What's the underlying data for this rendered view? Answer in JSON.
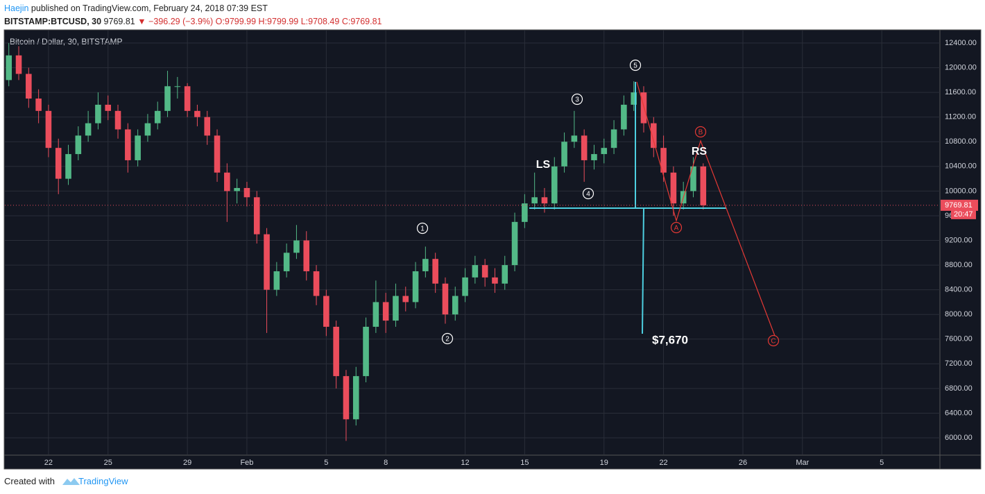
{
  "header": {
    "author": "Haejin",
    "published": "published on TradingView.com, February 24, 2018 07:39 EST",
    "symbol": "BITSTAMP:BTCUSD, 30",
    "last": "9769.81",
    "change": "▼ −396.29 (−3.9%)",
    "open": "O:9799.99",
    "high": "H:9799.99",
    "low": "L:9708.49",
    "close": "C:9769.81"
  },
  "footer": {
    "created": "Created with",
    "brand": "TradingView"
  },
  "chart_data": {
    "type": "candlestick",
    "title": "Bitcoin / Dollar, 30, BITSTAMP",
    "up_color": "#53b987",
    "down_color": "#eb4d5c",
    "grid": true,
    "x": [
      20,
      20.5,
      21,
      21.5,
      22,
      22.5,
      23,
      23.5,
      24,
      24.5,
      25,
      25.5,
      26,
      26.5,
      27,
      27.5,
      28,
      28.5,
      29,
      29.5,
      30,
      30.5,
      31,
      31.5,
      32,
      32.5,
      33,
      33.5,
      34,
      34.5,
      35,
      35.5,
      36,
      36.5,
      37,
      37.5,
      38,
      38.5,
      39,
      39.5,
      40,
      40.5,
      41,
      41.5,
      42,
      42.5,
      43,
      43.5,
      44,
      44.5,
      45,
      45.5,
      46,
      46.5,
      47,
      47.5,
      48,
      48.5,
      49,
      49.5,
      50,
      50.5,
      51,
      51.5,
      52,
      52.5,
      53,
      53.5,
      54,
      54.5,
      55
    ],
    "open": [
      11800,
      12200,
      11900,
      11500,
      11300,
      10700,
      10200,
      10600,
      10900,
      11100,
      11400,
      11300,
      11000,
      10500,
      10900,
      11100,
      11300,
      11700,
      11700,
      11300,
      11200,
      10900,
      10300,
      10000,
      10050,
      9900,
      9300,
      8400,
      8700,
      9000,
      9200,
      8700,
      8300,
      7800,
      7000,
      6300,
      7000,
      7800,
      8200,
      7900,
      8300,
      8200,
      8700,
      8900,
      8500,
      8000,
      8300,
      8600,
      8800,
      8600,
      8500,
      8800,
      9500,
      9800,
      9900,
      9800,
      10400,
      10800,
      10900,
      10500,
      10600,
      10700,
      11000,
      11400,
      11600,
      11100,
      10700,
      10300,
      9800,
      10000,
      10400
    ],
    "high": [
      12400,
      12350,
      12000,
      11650,
      11400,
      10850,
      10750,
      11050,
      11300,
      11600,
      11550,
      11400,
      11100,
      11000,
      11250,
      11450,
      11950,
      11850,
      11750,
      11400,
      11300,
      11000,
      10450,
      10200,
      10150,
      10000,
      9400,
      8850,
      9150,
      9450,
      9350,
      8800,
      8400,
      7900,
      7100,
      7150,
      7950,
      8550,
      8350,
      8500,
      8450,
      8850,
      9100,
      9000,
      8600,
      8450,
      8750,
      8950,
      8900,
      8750,
      8950,
      9650,
      9950,
      10300,
      10050,
      10550,
      10950,
      11300,
      11000,
      10750,
      10850,
      11150,
      11550,
      11780,
      11700,
      11200,
      10900,
      10400,
      10150,
      10550,
      10450
    ],
    "low": [
      11700,
      11800,
      11350,
      11100,
      10550,
      9950,
      10100,
      10500,
      10800,
      11000,
      11150,
      10850,
      10300,
      10400,
      10800,
      11000,
      11200,
      11500,
      11200,
      11050,
      10750,
      10150,
      9500,
      9800,
      9750,
      9150,
      7700,
      8300,
      8600,
      8900,
      8550,
      8150,
      7650,
      6800,
      5950,
      6200,
      6900,
      7700,
      7700,
      7800,
      8050,
      8100,
      8600,
      8350,
      7850,
      7900,
      8200,
      8500,
      8450,
      8350,
      8400,
      8700,
      9400,
      9700,
      9650,
      9700,
      10300,
      10700,
      10150,
      10350,
      10450,
      10600,
      10900,
      11300,
      10950,
      10550,
      10150,
      9600,
      9700,
      9900,
      9700
    ],
    "close": [
      12200,
      11900,
      11500,
      11300,
      10700,
      10200,
      10600,
      10900,
      11100,
      11400,
      11300,
      11000,
      10500,
      10900,
      11100,
      11300,
      11700,
      11700,
      11300,
      11200,
      10900,
      10300,
      10000,
      10050,
      9900,
      9300,
      8400,
      8700,
      9000,
      9200,
      8700,
      8300,
      7800,
      7000,
      6300,
      7000,
      7800,
      8200,
      7900,
      8300,
      8200,
      8700,
      8900,
      8500,
      8000,
      8300,
      8600,
      8800,
      8600,
      8500,
      8800,
      9500,
      9800,
      9900,
      9800,
      10400,
      10800,
      10900,
      10500,
      10600,
      10700,
      11000,
      11400,
      11600,
      11100,
      10700,
      10300,
      9800,
      10000,
      10400,
      9769.81
    ],
    "xlim": [
      19.8,
      66.93
    ],
    "ylim": [
      5730,
      12603
    ],
    "xticks": [
      22,
      25,
      29,
      {
        "value": 32,
        "label": "Feb"
      },
      {
        "value": 36,
        "label": "5"
      },
      {
        "value": 39,
        "label": "8"
      },
      {
        "value": 43,
        "label": "12"
      },
      {
        "value": 46,
        "label": "15"
      },
      {
        "value": 50,
        "label": "19"
      },
      {
        "value": 53,
        "label": "22"
      },
      {
        "value": 57,
        "label": "26"
      },
      {
        "value": 60,
        "label": "Mar"
      },
      {
        "value": 64,
        "label": "5"
      }
    ],
    "yticks": [
      {
        "value": 6000,
        "label": "6000.00"
      },
      {
        "value": 6400,
        "label": "6400.00"
      },
      {
        "value": 6800,
        "label": "6800.00"
      },
      {
        "value": 7200,
        "label": "7200.00"
      },
      {
        "value": 7600,
        "label": "7600.00"
      },
      {
        "value": 8000,
        "label": "8000.00"
      },
      {
        "value": 8400,
        "label": "8400.00"
      },
      {
        "value": 8800,
        "label": "8800.00"
      },
      {
        "value": 9200,
        "label": "9200.00"
      },
      {
        "value": 9600,
        "label": "9600.00"
      },
      {
        "value": 10000,
        "label": "10000.00"
      },
      {
        "value": 10400,
        "label": "10400.00"
      },
      {
        "value": 10800,
        "label": "10800.00"
      },
      {
        "value": 11200,
        "label": "11200.00"
      },
      {
        "value": 11600,
        "label": "11600.00"
      },
      {
        "value": 12000,
        "label": "12000.00"
      },
      {
        "value": 12400,
        "label": "12400.00"
      }
    ],
    "price_tag": "9769.81",
    "countdown": "20:47",
    "annotations": [
      {
        "text": "5",
        "color": "#ffffff"
      },
      {
        "text": "3",
        "color": "#ffffff"
      },
      {
        "text": "LS",
        "color": "#ffffff"
      },
      {
        "text": "4",
        "color": "#ffffff"
      },
      {
        "text": "1",
        "color": "#ffffff"
      },
      {
        "text": "2",
        "color": "#ffffff"
      },
      {
        "text": "B",
        "color": "#e53935"
      },
      {
        "text": "RS",
        "color": "#ffffff"
      },
      {
        "text": "A",
        "color": "#e53935"
      },
      {
        "text": "C",
        "color": "#e53935"
      },
      {
        "text": "$7,670",
        "color": "#ffffff"
      }
    ]
  }
}
